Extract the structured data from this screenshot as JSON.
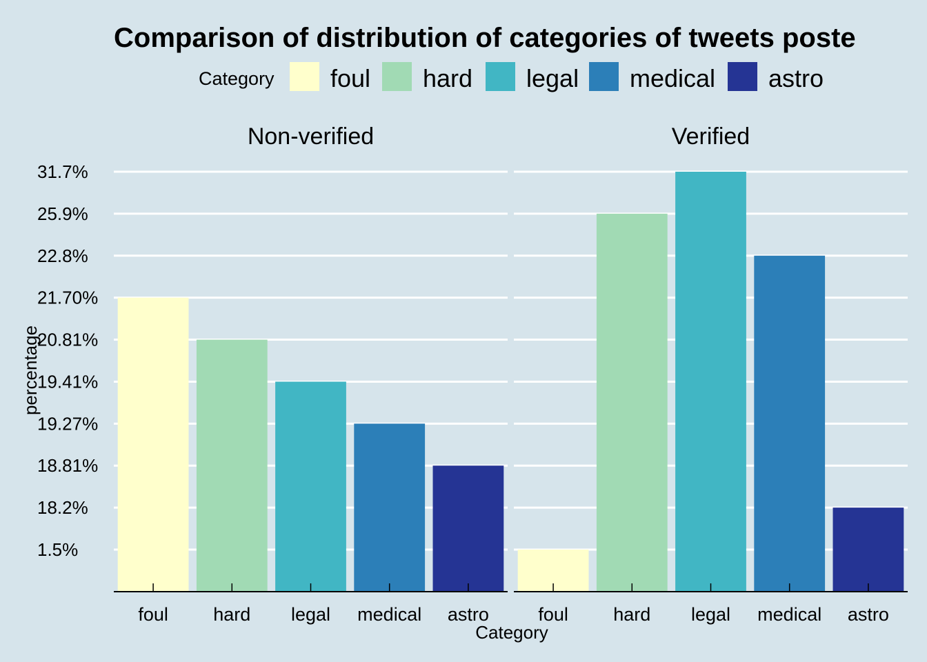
{
  "chart_data": {
    "type": "bar",
    "title": "Comparison of distribution of categories of tweets poste",
    "xlabel": "Category",
    "ylabel": "percentage",
    "legend": {
      "title": "Category",
      "placement": "top",
      "entries": [
        "foul",
        "hard",
        "legal",
        "medical",
        "astro"
      ]
    },
    "categories": [
      "foul",
      "hard",
      "legal",
      "medical",
      "astro"
    ],
    "colors": {
      "foul": "#ffffcc",
      "hard": "#a1dab4",
      "legal": "#41b6c4",
      "medical": "#2c7fb8",
      "astro": "#253494"
    },
    "y_scale": "discrete",
    "y_ticks": [
      "1.5%",
      "18.2%",
      "18.81%",
      "19.27%",
      "19.41%",
      "20.81%",
      "21.70%",
      "22.8%",
      "25.9%",
      "31.7%"
    ],
    "grid": true,
    "facets": [
      {
        "name": "Non-verified",
        "values": [
          "21.70%",
          "20.81%",
          "19.41%",
          "19.27%",
          "18.81%"
        ]
      },
      {
        "name": "Verified",
        "values": [
          "1.5%",
          "25.9%",
          "31.7%",
          "22.8%",
          "18.2%"
        ]
      }
    ]
  }
}
